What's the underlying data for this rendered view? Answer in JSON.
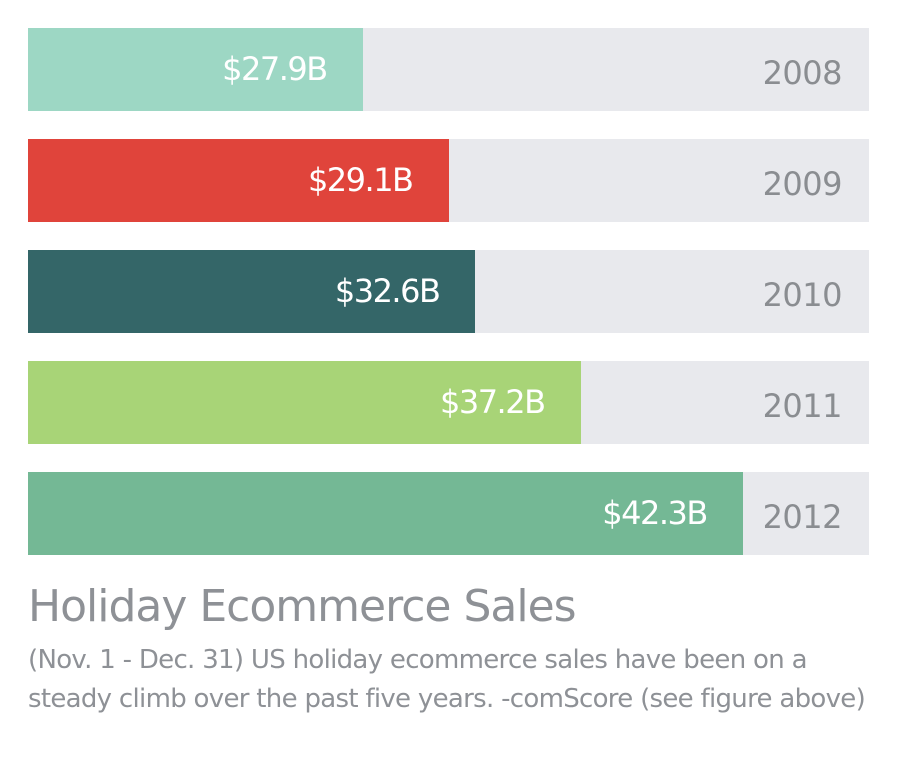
{
  "chart_data": {
    "type": "bar",
    "orientation": "horizontal",
    "title": "Holiday Ecommerce Sales",
    "caption": "(Nov. 1 - Dec. 31) US holiday ecommerce sales have been on a steady climb over the past five years. -comScore (see figure above)",
    "unit": "USD billions",
    "categories": [
      "2008",
      "2009",
      "2010",
      "2011",
      "2012"
    ],
    "values": [
      27.9,
      29.1,
      32.6,
      37.2,
      42.3
    ],
    "labels": [
      "$27.9B",
      "$29.1B",
      "$32.6B",
      "$37.2B",
      "$42.3B"
    ],
    "fill_fraction": [
      0.398,
      0.5,
      0.532,
      0.657,
      0.85
    ],
    "colors": [
      "#9dd7c4",
      "#e0443b",
      "#346668",
      "#a8d477",
      "#74b895"
    ],
    "track_color": "#e8e9ed",
    "grid": false,
    "legend": "none"
  }
}
